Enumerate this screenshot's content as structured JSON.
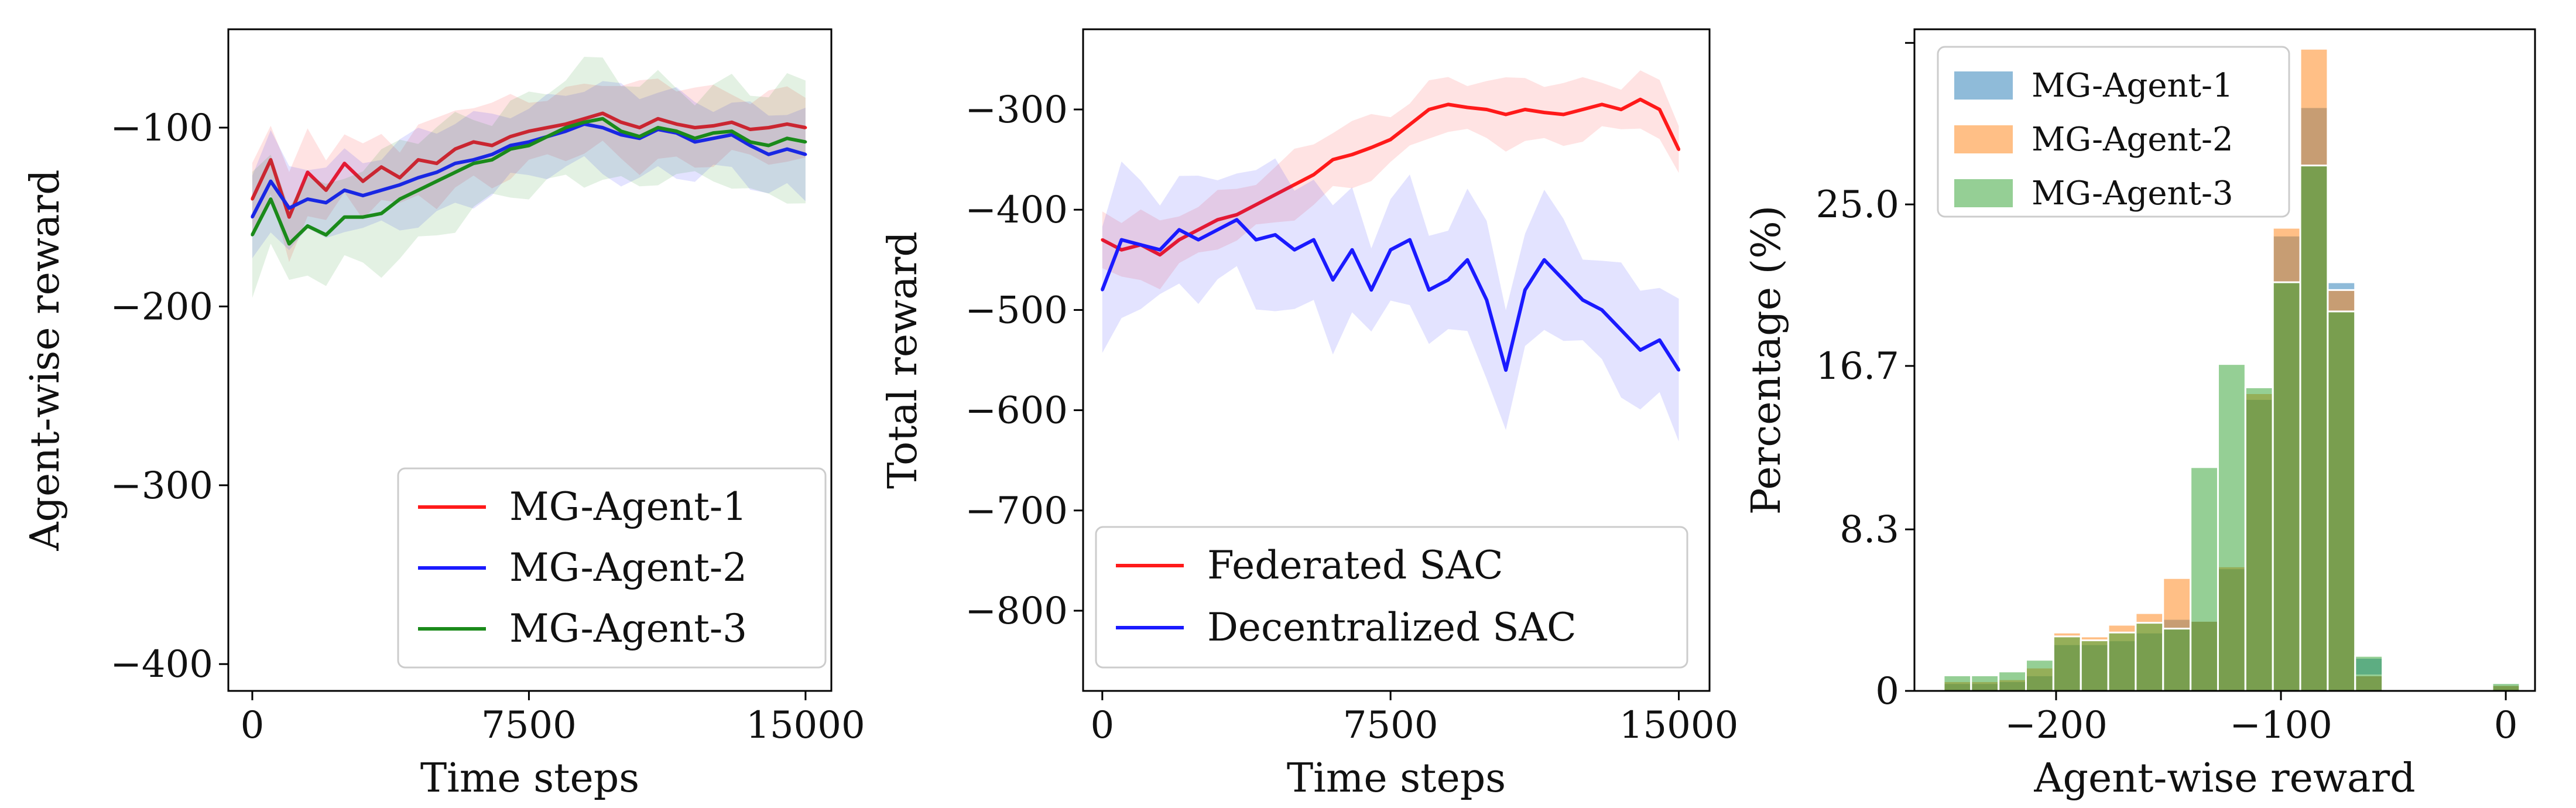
{
  "colors": {
    "agent1": "#ff1a1a",
    "agent2": "#1a1aff",
    "agent3": "#1a8a1a",
    "federated": "#ff1a1a",
    "decentralized": "#1a1aff",
    "hist_agent1": "#1f77b4",
    "hist_agent2": "#ff7f0e",
    "hist_agent3": "#2ca02c"
  },
  "chart_data": [
    {
      "type": "line",
      "id": "agent-wise",
      "xlabel": "Time steps",
      "ylabel": "Agent-wise reward",
      "xlim": [
        -650,
        15700
      ],
      "ylim": [
        -415,
        -45
      ],
      "xticks": [
        0,
        7500,
        15000
      ],
      "xtick_labels": [
        "0",
        "7500",
        "15000"
      ],
      "yticks": [
        -400,
        -300,
        -200,
        -100
      ],
      "ytick_labels": [
        "−400",
        "−300",
        "−200",
        "−100"
      ],
      "legend": {
        "position": "lower right"
      },
      "x": [
        0,
        500,
        1000,
        1500,
        2000,
        2500,
        3000,
        3500,
        4000,
        4500,
        5000,
        5500,
        6000,
        6500,
        7000,
        7500,
        8000,
        8500,
        9000,
        9500,
        10000,
        10500,
        11000,
        11500,
        12000,
        12500,
        13000,
        13500,
        14000,
        14500,
        15000
      ],
      "series": [
        {
          "name": "MG-Agent-1",
          "color_key": "agent1",
          "values": [
            -140,
            -118,
            -150,
            -125,
            -135,
            -120,
            -130,
            -122,
            -128,
            -118,
            -120,
            -112,
            -108,
            -110,
            -105,
            -102,
            -100,
            -98,
            -95,
            -92,
            -97,
            -100,
            -95,
            -98,
            -100,
            -99,
            -97,
            -101,
            -100,
            -98,
            -100
          ],
          "band": 20
        },
        {
          "name": "MG-Agent-2",
          "color_key": "agent2",
          "values": [
            -150,
            -130,
            -145,
            -140,
            -142,
            -135,
            -138,
            -135,
            -132,
            -128,
            -125,
            -120,
            -118,
            -115,
            -110,
            -108,
            -105,
            -102,
            -98,
            -100,
            -104,
            -106,
            -101,
            -103,
            -108,
            -106,
            -104,
            -110,
            -115,
            -112,
            -115
          ],
          "band": 22
        },
        {
          "name": "MG-Agent-3",
          "color_key": "agent3",
          "values": [
            -160,
            -140,
            -165,
            -155,
            -160,
            -150,
            -150,
            -148,
            -140,
            -135,
            -130,
            -125,
            -120,
            -118,
            -112,
            -110,
            -105,
            -100,
            -97,
            -95,
            -102,
            -105,
            -100,
            -102,
            -106,
            -103,
            -102,
            -108,
            -110,
            -106,
            -108
          ],
          "band": 28
        }
      ]
    },
    {
      "type": "line",
      "id": "total",
      "xlabel": "Time steps",
      "ylabel": "Total reward",
      "xlim": [
        -500,
        15800
      ],
      "ylim": [
        -880,
        -220
      ],
      "xticks": [
        0,
        7500,
        15000
      ],
      "xtick_labels": [
        "0",
        "7500",
        "15000"
      ],
      "yticks": [
        -800,
        -700,
        -600,
        -500,
        -400,
        -300
      ],
      "ytick_labels": [
        "−800",
        "−700",
        "−600",
        "−500",
        "−400",
        "−300"
      ],
      "legend": {
        "position": "lower left"
      },
      "x": [
        0,
        500,
        1000,
        1500,
        2000,
        2500,
        3000,
        3500,
        4000,
        4500,
        5000,
        5500,
        6000,
        6500,
        7000,
        7500,
        8000,
        8500,
        9000,
        9500,
        10000,
        10500,
        11000,
        11500,
        12000,
        12500,
        13000,
        13500,
        14000,
        14500,
        15000
      ],
      "series": [
        {
          "name": "Federated SAC",
          "color_key": "federated",
          "values": [
            -430,
            -440,
            -435,
            -445,
            -430,
            -420,
            -410,
            -405,
            -395,
            -385,
            -375,
            -365,
            -350,
            -345,
            -338,
            -330,
            -315,
            -300,
            -295,
            -298,
            -300,
            -305,
            -300,
            -303,
            -305,
            -300,
            -295,
            -300,
            -290,
            -300,
            -340
          ],
          "band": 28
        },
        {
          "name": "Decentralized SAC",
          "color_key": "decentralized",
          "values": [
            -480,
            -430,
            -435,
            -440,
            -420,
            -430,
            -420,
            -410,
            -430,
            -425,
            -440,
            -430,
            -470,
            -440,
            -480,
            -440,
            -430,
            -480,
            -470,
            -450,
            -490,
            -560,
            -480,
            -450,
            -470,
            -490,
            -500,
            -520,
            -540,
            -530,
            -560
          ],
          "band": 60
        }
      ]
    },
    {
      "type": "bar",
      "id": "histogram",
      "xlabel": "Agent-wise reward",
      "ylabel": "Percentage (%)",
      "xlim": [
        -263,
        13
      ],
      "ylim": [
        0,
        34
      ],
      "xticks": [
        -200,
        -100,
        0
      ],
      "xtick_labels": [
        "−200",
        "−100",
        "0"
      ],
      "yticks": [
        0,
        8.3,
        16.7,
        25.0
      ],
      "ytick_labels": [
        "0",
        "8.3",
        "16.7",
        "25.0"
      ],
      "legend": {
        "position": "upper left"
      },
      "bin_width": 12.2,
      "bin_starts": [
        -250,
        -237.8,
        -225.6,
        -213.4,
        -201.2,
        -189,
        -176.8,
        -164.6,
        -152.4,
        -140.2,
        -128,
        -115.8,
        -103.6,
        -91.4,
        -79.2,
        -67,
        -54.8,
        -42.6,
        -30.4,
        -18.2,
        -6
      ],
      "series": [
        {
          "name": "MG-Agent-1",
          "color_key": "hist_agent1",
          "values": [
            0.4,
            0.4,
            0.5,
            0.8,
            2.4,
            2.4,
            2.6,
            3.0,
            3.7,
            3.6,
            6.3,
            15.0,
            23.4,
            30.0,
            21.0,
            1.7,
            0,
            0,
            0,
            0,
            0.4
          ]
        },
        {
          "name": "MG-Agent-2",
          "color_key": "hist_agent2",
          "values": [
            0.5,
            0.5,
            0.6,
            1.2,
            3.0,
            2.8,
            3.4,
            4.0,
            5.8,
            3.6,
            6.4,
            15.3,
            23.8,
            33.0,
            20.6,
            0.8,
            0,
            0,
            0,
            0,
            0.3
          ]
        },
        {
          "name": "MG-Agent-3",
          "color_key": "hist_agent3",
          "values": [
            0.8,
            0.8,
            1.0,
            1.6,
            2.8,
            2.6,
            3.0,
            3.5,
            3.2,
            11.5,
            16.8,
            15.6,
            21.0,
            27.0,
            19.5,
            1.8,
            0,
            0,
            0,
            0,
            0.4
          ]
        }
      ]
    }
  ]
}
